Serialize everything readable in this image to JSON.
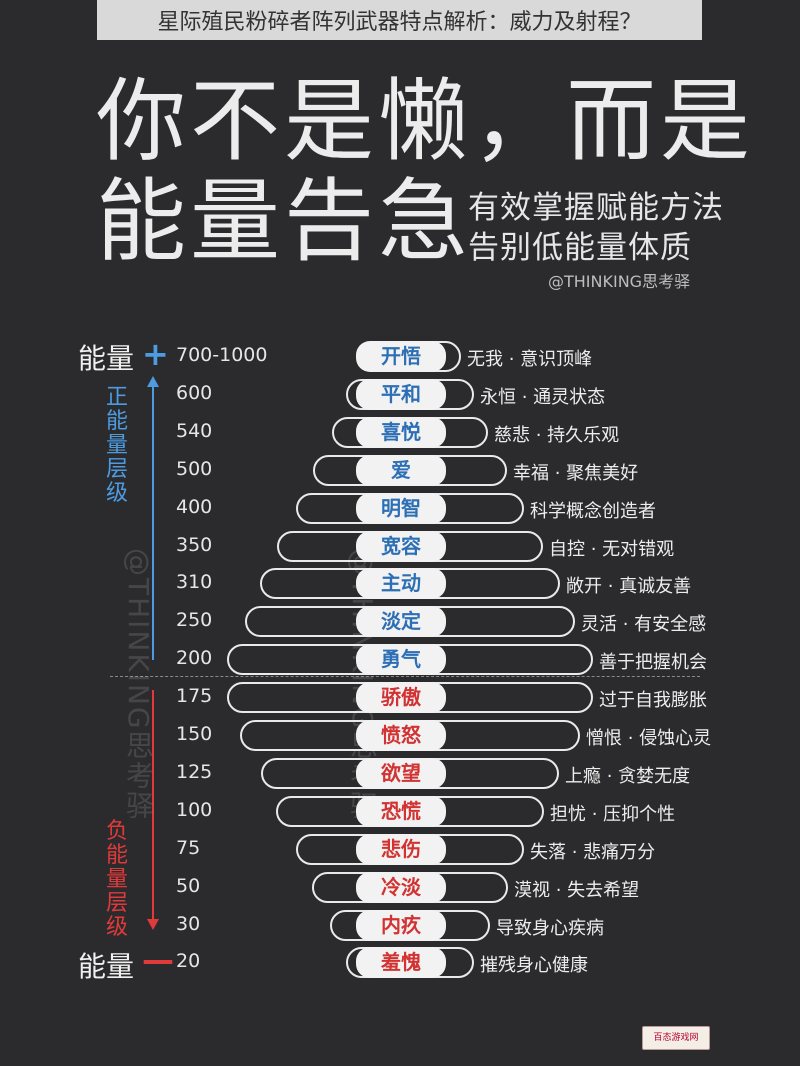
{
  "header": {
    "title": "星际殖民粉碎者阵列武器特点解析：威力及射程？"
  },
  "poster": {
    "title_line1": "你不是懒，而是",
    "title_line2": "能量告急",
    "subtitle_line1": "有效掌握赋能方法",
    "subtitle_line2": "告别低能量体质",
    "author": "@THINKING思考驿",
    "energy_label": "能量",
    "plus_sign": "+",
    "minus_sign": "—",
    "positive_label": "正能量层级",
    "negative_label": "负能量层级",
    "watermark_text": "@THINKING思考驿",
    "logo_text": "百态游戏网",
    "colors": {
      "positive": "#2d6fb5",
      "negative": "#d23232",
      "background": "#2b2b2d"
    }
  },
  "levels": [
    {
      "value": "700-1000",
      "name": "开悟",
      "desc": "无我 · 意识顶峰",
      "type": "positive"
    },
    {
      "value": "600",
      "name": "平和",
      "desc": "永恒 · 通灵状态",
      "type": "positive"
    },
    {
      "value": "540",
      "name": "喜悦",
      "desc": "慈悲 · 持久乐观",
      "type": "positive"
    },
    {
      "value": "500",
      "name": "爱",
      "desc": "幸福 · 聚焦美好",
      "type": "positive"
    },
    {
      "value": "400",
      "name": "明智",
      "desc": "科学概念创造者",
      "type": "positive"
    },
    {
      "value": "350",
      "name": "宽容",
      "desc": "自控 · 无对错观",
      "type": "positive"
    },
    {
      "value": "310",
      "name": "主动",
      "desc": "敞开 · 真诚友善",
      "type": "positive"
    },
    {
      "value": "250",
      "name": "淡定",
      "desc": "灵活 · 有安全感",
      "type": "positive"
    },
    {
      "value": "200",
      "name": "勇气",
      "desc": "善于把握机会",
      "type": "positive"
    },
    {
      "value": "175",
      "name": "骄傲",
      "desc": "过于自我膨胀",
      "type": "negative"
    },
    {
      "value": "150",
      "name": "愤怒",
      "desc": "憎恨 · 侵蚀心灵",
      "type": "negative"
    },
    {
      "value": "125",
      "name": "欲望",
      "desc": "上瘾 · 贪婪无度",
      "type": "negative"
    },
    {
      "value": "100",
      "name": "恐慌",
      "desc": "担忧 · 压抑个性",
      "type": "negative"
    },
    {
      "value": "75",
      "name": "悲伤",
      "desc": "失落 · 悲痛万分",
      "type": "negative"
    },
    {
      "value": "50",
      "name": "冷淡",
      "desc": "漠视 · 失去希望",
      "type": "negative"
    },
    {
      "value": "30",
      "name": "内疚",
      "desc": "导致身心疾病",
      "type": "negative"
    },
    {
      "value": "20",
      "name": "羞愧",
      "desc": "摧残身心健康",
      "type": "negative"
    }
  ]
}
